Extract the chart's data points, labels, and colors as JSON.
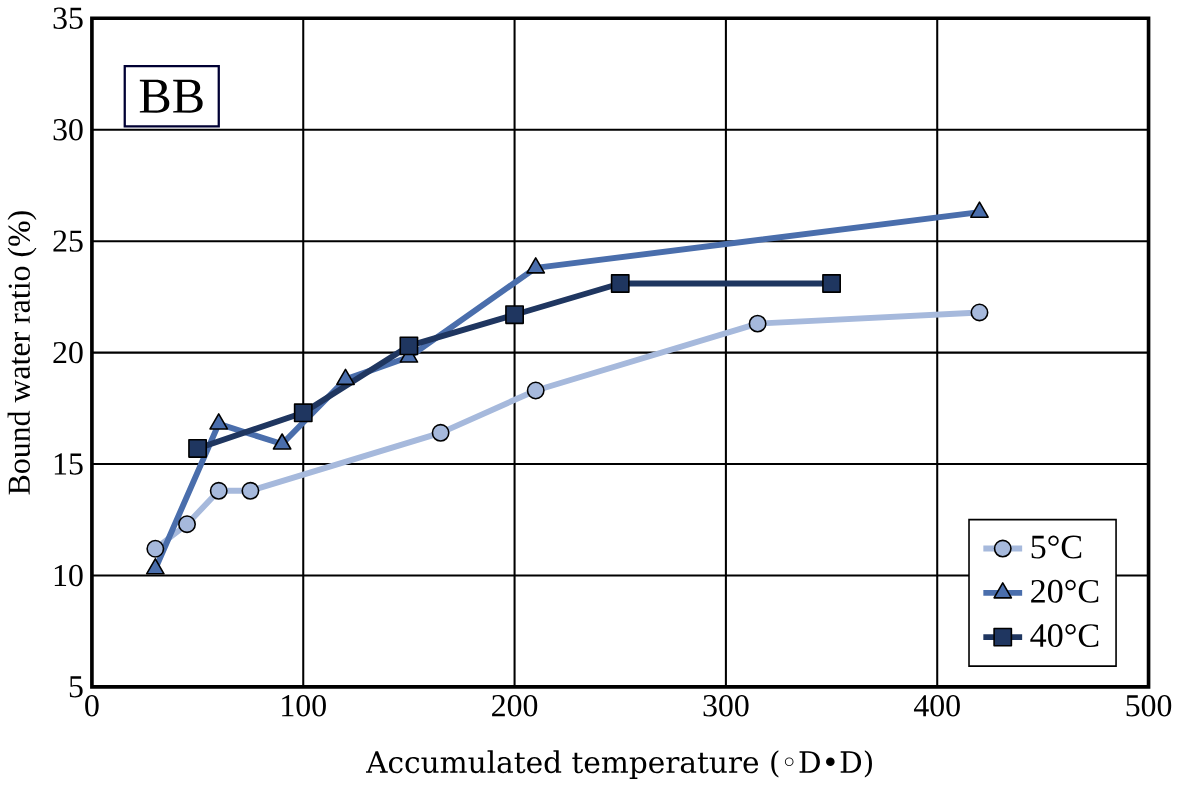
{
  "chart_data": {
    "type": "line",
    "xlabel": "Accumulated temperature (◦D•D)",
    "ylabel": "Bound water ratio (%)",
    "annotations": [
      "BB"
    ],
    "xlim": [
      0,
      500
    ],
    "xticks": [
      0,
      100,
      200,
      300,
      400,
      500
    ],
    "ylim": [
      5,
      35
    ],
    "yticks": [
      5,
      10,
      15,
      20,
      25,
      30,
      35
    ],
    "grid": true,
    "legend": "bottom right",
    "series": [
      {
        "name": "5°C",
        "color": "#a6b9dc",
        "marker": "circle",
        "x": [
          30,
          45,
          60,
          75,
          165,
          210,
          315,
          420
        ],
        "values": [
          11.2,
          12.3,
          13.8,
          13.8,
          16.4,
          18.3,
          21.3,
          21.8
        ]
      },
      {
        "name": "20°C",
        "color": "#4a6eac",
        "marker": "triangle",
        "x": [
          30,
          60,
          90,
          120,
          150,
          210,
          420
        ],
        "values": [
          10.3,
          16.8,
          15.9,
          18.8,
          19.8,
          23.8,
          26.3
        ]
      },
      {
        "name": "40°C",
        "color": "#1f3660",
        "marker": "square",
        "x": [
          50,
          100,
          150,
          200,
          250,
          350
        ],
        "values": [
          15.7,
          17.3,
          20.3,
          21.7,
          23.1,
          23.1
        ]
      }
    ]
  }
}
